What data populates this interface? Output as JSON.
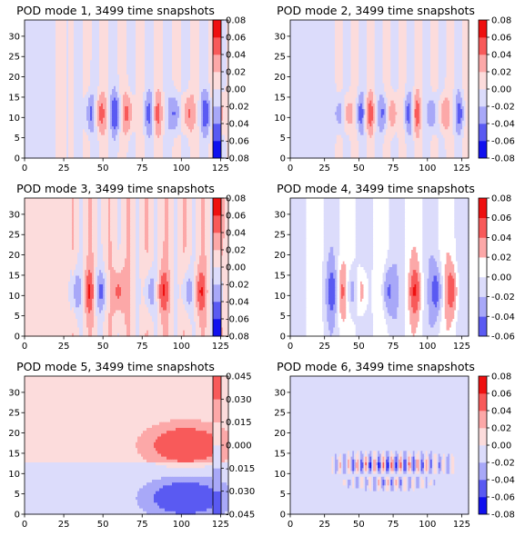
{
  "chart_data": [
    {
      "type": "heatmap",
      "title": "POD mode 1, 3499 time snapshots",
      "xlim": [
        0,
        130
      ],
      "ylim": [
        0,
        34
      ],
      "x_ticks": [
        "0",
        "25",
        "50",
        "75",
        "100",
        "125"
      ],
      "y_ticks": [
        "0",
        "5",
        "10",
        "15",
        "20",
        "25",
        "30"
      ],
      "colorbar": {
        "levels": [
          -0.08,
          -0.06,
          -0.04,
          -0.02,
          0.0,
          0.02,
          0.04,
          0.06,
          0.08
        ],
        "tick_labels": [
          "-0.08",
          "-0.06",
          "-0.04",
          "-0.02",
          "0.00",
          "0.02",
          "0.04",
          "0.06",
          "0.08"
        ]
      },
      "pattern": {
        "kind": "wavetrain",
        "bg": [
          {
            "x0": 0,
            "x1": 20,
            "v": -0.01
          },
          {
            "x0": 20,
            "x1": 27,
            "v": 0.01
          },
          {
            "x0": 27,
            "x1": 130,
            "v": 0.0
          }
        ],
        "bands_start": 28,
        "bands_period": 11.5,
        "band_amp": 0.012,
        "blobs_x": [
          42,
          48,
          58,
          66,
          80,
          84,
          96,
          104,
          116,
          124
        ],
        "blobs_y": 11,
        "blob_amp": 0.05,
        "sx": 2.6,
        "sy": 3.5,
        "phase": 0
      }
    },
    {
      "type": "heatmap",
      "title": "POD mode 2, 3499 time snapshots",
      "xlim": [
        0,
        130
      ],
      "ylim": [
        0,
        34
      ],
      "x_ticks": [
        "0",
        "25",
        "50",
        "75",
        "100",
        "125"
      ],
      "y_ticks": [
        "0",
        "5",
        "10",
        "15",
        "20",
        "25",
        "30"
      ],
      "colorbar": {
        "levels": [
          -0.08,
          -0.06,
          -0.04,
          -0.02,
          0.0,
          0.02,
          0.04,
          0.06,
          0.08
        ],
        "tick_labels": [
          "-0.08",
          "-0.06",
          "-0.04",
          "-0.02",
          "0.00",
          "0.02",
          "0.04",
          "0.06",
          "0.08"
        ]
      },
      "pattern": {
        "kind": "wavetrain",
        "bg": [
          {
            "x0": 0,
            "x1": 27,
            "v": -0.01
          },
          {
            "x0": 27,
            "x1": 130,
            "v": 0.0
          }
        ],
        "bands_start": 30,
        "bands_period": 11.5,
        "band_amp": 0.012,
        "blobs_x": [
          36,
          42,
          51,
          58,
          68,
          75,
          86,
          92,
          104,
          112,
          124
        ],
        "blobs_y": 11,
        "blob_amp": 0.045,
        "sx": 2.4,
        "sy": 3.3,
        "phase": 0.5
      }
    },
    {
      "type": "heatmap",
      "title": "POD mode 3, 3499 time snapshots",
      "xlim": [
        0,
        130
      ],
      "ylim": [
        0,
        34
      ],
      "x_ticks": [
        "0",
        "25",
        "50",
        "75",
        "100",
        "125"
      ],
      "y_ticks": [
        "0",
        "5",
        "10",
        "15",
        "20",
        "25",
        "30"
      ],
      "colorbar": {
        "levels": [
          -0.08,
          -0.06,
          -0.04,
          -0.02,
          0.0,
          0.02,
          0.04,
          0.06,
          0.08
        ],
        "tick_labels": [
          "-0.08",
          "-0.06",
          "-0.04",
          "-0.02",
          "0.00",
          "0.02",
          "0.04",
          "0.06",
          "0.08"
        ]
      },
      "pattern": {
        "kind": "wavetrain",
        "bg": [
          {
            "x0": 0,
            "x1": 130,
            "v": 0.01
          }
        ],
        "bands_start": 30,
        "bands_period": 12,
        "band_amp": 0.012,
        "blobs_x": [
          33,
          41,
          49,
          60,
          80,
          88,
          104,
          112,
          123
        ],
        "blobs_y": 11,
        "blob_amp": 0.045,
        "sx": 2.8,
        "sy": 4.0,
        "phase": 0
      }
    },
    {
      "type": "heatmap",
      "title": "POD mode 4, 3499 time snapshots",
      "xlim": [
        0,
        130
      ],
      "ylim": [
        0,
        34
      ],
      "x_ticks": [
        "0",
        "25",
        "50",
        "75",
        "100",
        "125"
      ],
      "y_ticks": [
        "0",
        "5",
        "10",
        "15",
        "20",
        "25",
        "30"
      ],
      "colorbar": {
        "levels": [
          -0.06,
          -0.04,
          -0.02,
          0.0,
          0.02,
          0.04,
          0.06,
          0.08
        ],
        "tick_labels": [
          "-0.06",
          "-0.04",
          "-0.02",
          "0.00",
          "0.02",
          "0.04",
          "0.06",
          "0.08"
        ]
      },
      "pattern": {
        "kind": "wavetrain",
        "bg": [
          {
            "x0": 0,
            "x1": 130,
            "v": 0.0
          }
        ],
        "bands_start": 0,
        "bands_period": 24,
        "band_amp": 0.018,
        "blobs_x": [
          31,
          37,
          45,
          52,
          71,
          91,
          107,
          118
        ],
        "blobs_y": 11,
        "blob_amp": 0.045,
        "sx": 3.2,
        "sy": 4.5,
        "phase": 0.25
      }
    },
    {
      "type": "heatmap",
      "title": "POD mode 5, 3499 time snapshots",
      "xlim": [
        0,
        130
      ],
      "ylim": [
        0,
        34
      ],
      "x_ticks": [
        "0",
        "25",
        "50",
        "75",
        "100",
        "125"
      ],
      "y_ticks": [
        "0",
        "5",
        "10",
        "15",
        "20",
        "25",
        "30"
      ],
      "colorbar": {
        "levels": [
          -0.045,
          -0.03,
          -0.015,
          0.0,
          0.015,
          0.03,
          0.045
        ],
        "tick_labels": [
          "-0.045",
          "-0.030",
          "-0.015",
          "0.000",
          "0.015",
          "0.030",
          "0.045"
        ]
      },
      "pattern": {
        "kind": "dipole"
      }
    },
    {
      "type": "heatmap",
      "title": "POD mode 6, 3499 time snapshots",
      "xlim": [
        0,
        130
      ],
      "ylim": [
        0,
        34
      ],
      "x_ticks": [
        "0",
        "25",
        "50",
        "75",
        "100",
        "125"
      ],
      "y_ticks": [
        "0",
        "5",
        "10",
        "15",
        "20",
        "25",
        "30"
      ],
      "colorbar": {
        "levels": [
          -0.08,
          -0.06,
          -0.04,
          -0.02,
          0.0,
          0.02,
          0.04,
          0.06,
          0.08
        ],
        "tick_labels": [
          "-0.08",
          "-0.06",
          "-0.04",
          "-0.02",
          "0.00",
          "0.02",
          "0.04",
          "0.06",
          "0.08"
        ]
      },
      "pattern": {
        "kind": "double"
      }
    }
  ],
  "colors": {
    "diverging": [
      "#1010ee",
      "#5a5af2",
      "#a8a8f8",
      "#dcdcfb",
      "#fcdcdc",
      "#fca8a8",
      "#f85a5a",
      "#ee1010"
    ],
    "neutral_white": "#ffffff"
  }
}
